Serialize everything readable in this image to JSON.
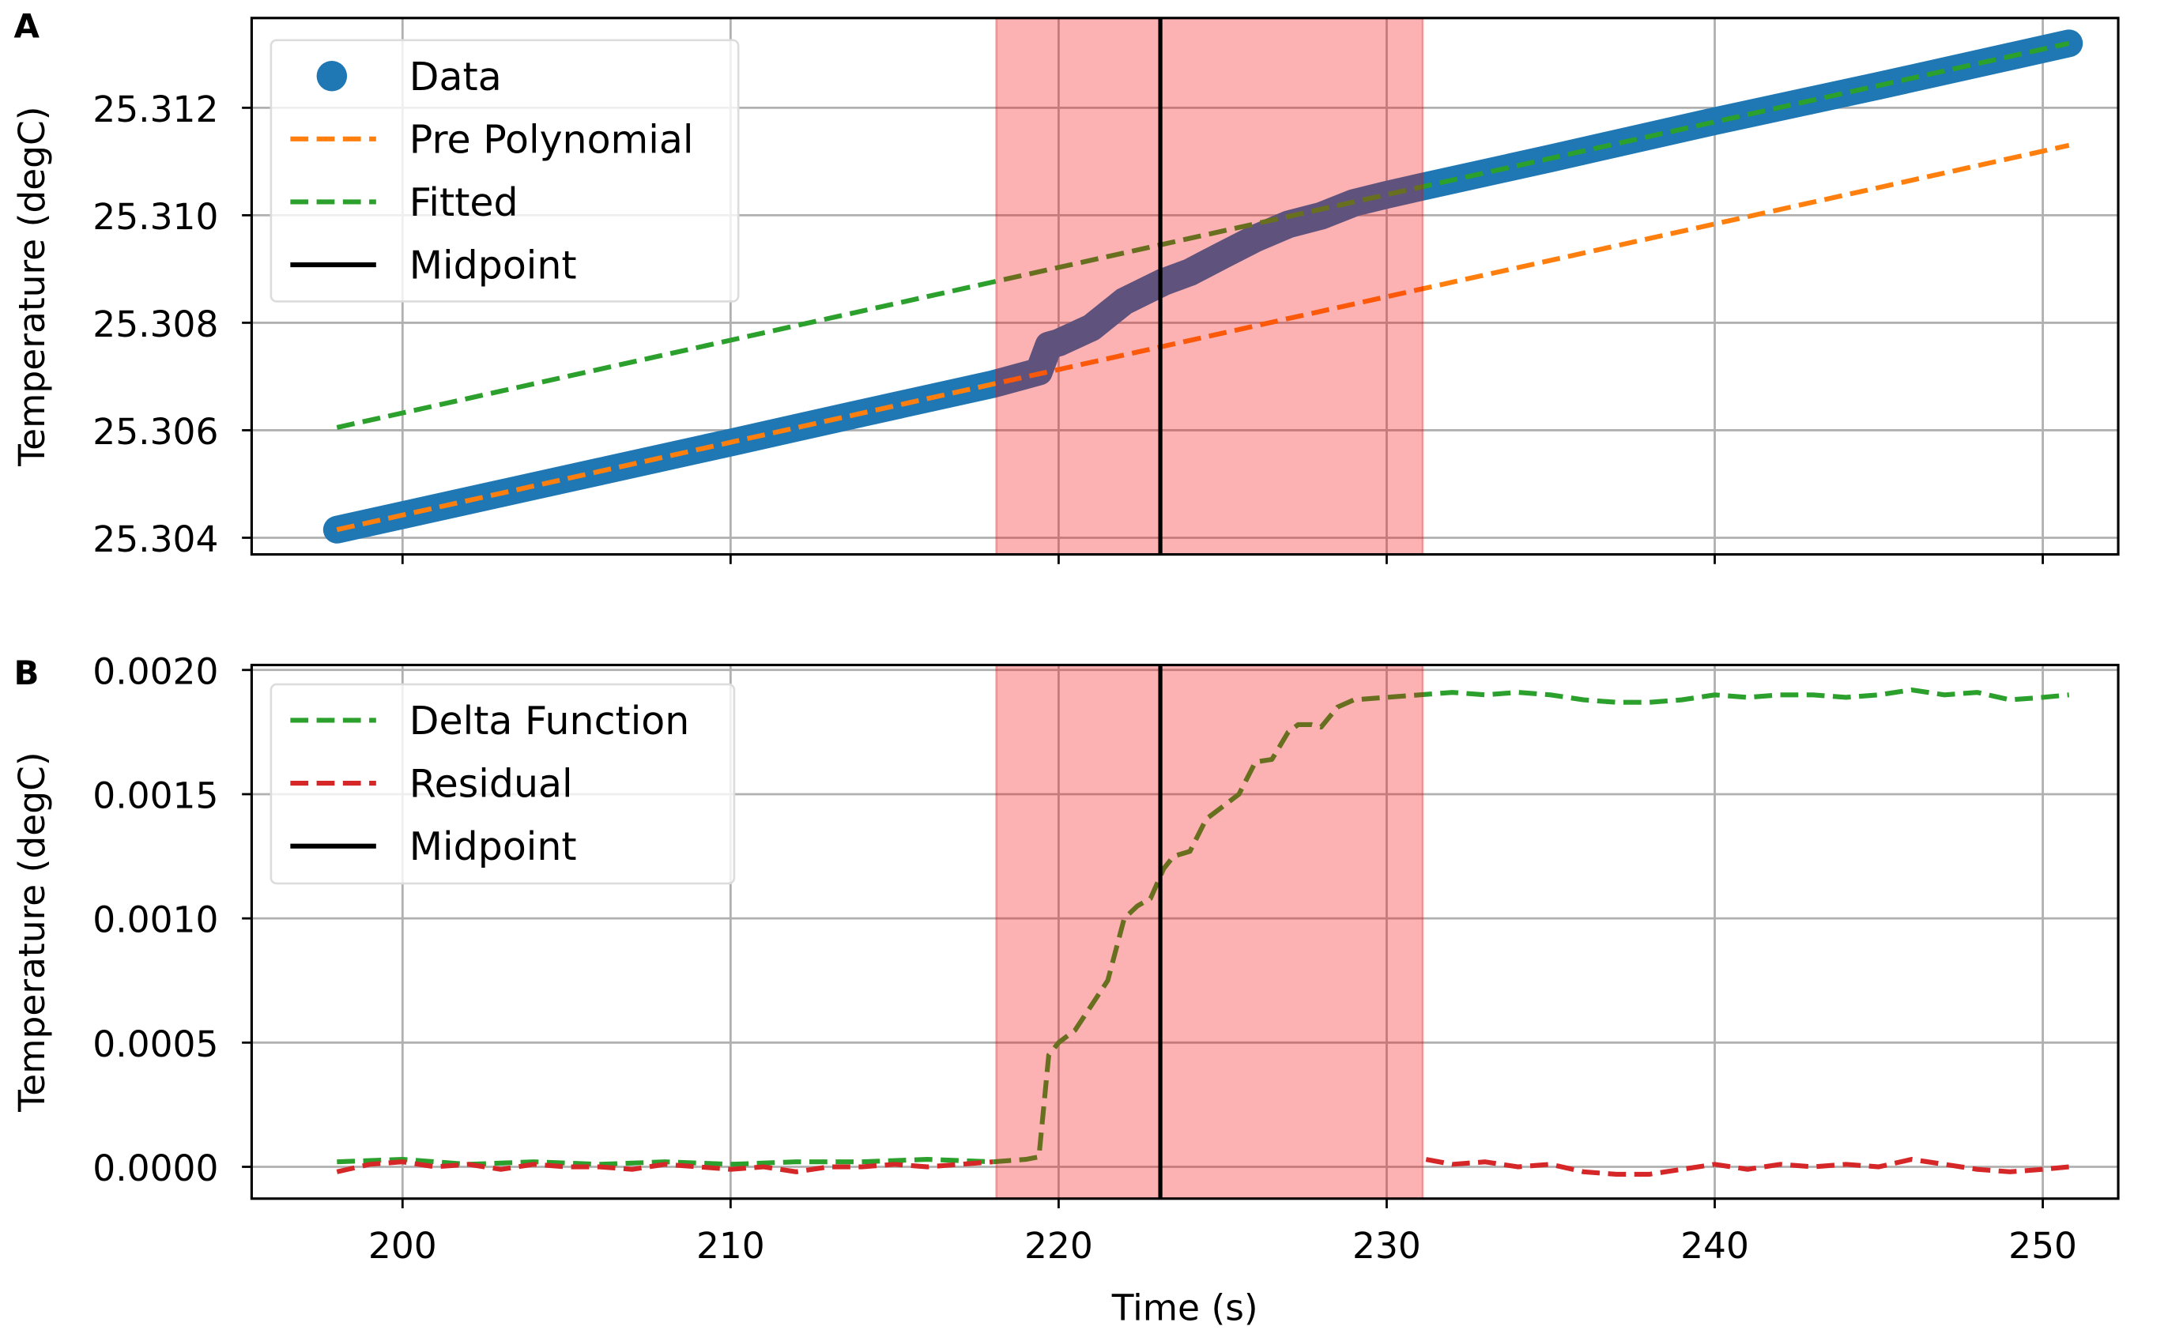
{
  "chart_data": [
    {
      "panel_label": "A",
      "type": "line",
      "xlabel": "",
      "ylabel": "Temperature (degC)",
      "xlim": [
        195.4,
        252.3
      ],
      "ylim": [
        25.30369,
        25.31367
      ],
      "xticks": [
        200,
        210,
        220,
        230,
        240,
        250
      ],
      "yticks": [
        "25.304",
        "25.306",
        "25.308",
        "25.310",
        "25.312"
      ],
      "ytick_values": [
        25.304,
        25.306,
        25.308,
        25.31,
        25.312
      ],
      "grid": true,
      "legend_placement": "top-left",
      "shaded_region": [
        218.1,
        231.1
      ],
      "midpoint": 223.1,
      "series": [
        {
          "name": "Data",
          "style": "scatter",
          "color": "#1f77b4",
          "x": [
            198,
            202,
            206,
            210,
            214,
            218,
            219.4,
            219.7,
            220,
            221,
            222,
            223.2,
            224,
            225,
            226,
            227,
            228,
            229,
            230,
            231,
            235,
            240,
            245,
            250.8
          ],
          "y": [
            25.30415,
            25.30469,
            25.30523,
            25.30577,
            25.30632,
            25.30686,
            25.30709,
            25.30758,
            25.30763,
            25.30791,
            25.3084,
            25.30876,
            25.30894,
            25.30926,
            25.30957,
            25.30983,
            25.30999,
            25.31023,
            25.31038,
            25.31052,
            25.31106,
            25.31175,
            25.31241,
            25.3132
          ]
        },
        {
          "name": "Pre Polynomial",
          "style": "dashed",
          "color": "#ff7f0e",
          "x": [
            198,
            250.8
          ],
          "y": [
            25.30415,
            25.3113
          ]
        },
        {
          "name": "Fitted",
          "style": "dashed",
          "color": "#2ca02c",
          "x": [
            198,
            250.8
          ],
          "y": [
            25.30605,
            25.3132
          ]
        },
        {
          "name": "Midpoint",
          "style": "solid",
          "color": "#000000"
        }
      ]
    },
    {
      "panel_label": "B",
      "type": "line",
      "xlabel": "Time (s)",
      "ylabel": "Temperature (degC)",
      "xlim": [
        195.4,
        252.3
      ],
      "ylim": [
        -0.000128,
        0.00202
      ],
      "xticks": [
        200,
        210,
        220,
        230,
        240,
        250
      ],
      "yticks": [
        "0.0000",
        "0.0005",
        "0.0010",
        "0.0015",
        "0.0020"
      ],
      "ytick_values": [
        0,
        0.0005,
        0.001,
        0.0015,
        0.002
      ],
      "grid": true,
      "legend_placement": "top-left",
      "shaded_region": [
        218.1,
        231.1
      ],
      "midpoint": 223.1,
      "series": [
        {
          "name": "Delta Function",
          "style": "dashed",
          "color": "#2ca02c",
          "x": [
            198,
            200,
            202,
            204,
            206,
            208,
            210,
            212,
            214,
            216,
            218,
            219,
            219.4,
            219.7,
            220,
            220.5,
            221,
            221.5,
            222,
            222.4,
            222.8,
            223.2,
            223.5,
            224,
            224.5,
            225,
            225.5,
            226,
            226.5,
            227,
            227.3,
            227.7,
            228,
            228.5,
            229,
            230,
            231,
            232,
            233,
            234,
            235,
            236,
            237,
            238,
            239,
            240,
            241,
            242,
            243,
            244,
            245,
            246,
            247,
            248,
            249,
            250,
            250.8
          ],
          "y": [
            2e-05,
            3e-05,
            1e-05,
            2e-05,
            1e-05,
            2e-05,
            1e-05,
            2e-05,
            2e-05,
            3e-05,
            2e-05,
            3e-05,
            4e-05,
            0.00045,
            0.0005,
            0.00055,
            0.00065,
            0.00075,
            0.001,
            0.00105,
            0.00108,
            0.0012,
            0.00125,
            0.00127,
            0.0014,
            0.00145,
            0.0015,
            0.00163,
            0.00164,
            0.00175,
            0.00178,
            0.00178,
            0.00177,
            0.00185,
            0.00188,
            0.00189,
            0.0019,
            0.00191,
            0.0019,
            0.00191,
            0.0019,
            0.00188,
            0.00187,
            0.00187,
            0.00188,
            0.0019,
            0.00189,
            0.0019,
            0.0019,
            0.00189,
            0.0019,
            0.00192,
            0.0019,
            0.00191,
            0.00188,
            0.00189,
            0.0019
          ]
        },
        {
          "name": "Residual",
          "style": "dashed",
          "color": "#d62728",
          "x": [
            198,
            199,
            200,
            201,
            202,
            203,
            204,
            205,
            206,
            207,
            208,
            209,
            210,
            211,
            212,
            213,
            214,
            215,
            216,
            217,
            218,
            null,
            231.2,
            232,
            233,
            234,
            235,
            236,
            237,
            238,
            239,
            240,
            241,
            242,
            243,
            244,
            245,
            246,
            247,
            248,
            249,
            250,
            250.8
          ],
          "y": [
            -2e-05,
            1e-05,
            2e-05,
            0.0,
            1e-05,
            -1e-05,
            1e-05,
            0.0,
            0.0,
            -1e-05,
            1e-05,
            0.0,
            -1e-05,
            0.0,
            -2e-05,
            0.0,
            0.0,
            1e-05,
            0.0,
            1e-05,
            2e-05,
            null,
            3e-05,
            1e-05,
            2e-05,
            0.0,
            1e-05,
            -2e-05,
            -3e-05,
            -3e-05,
            -1e-05,
            1e-05,
            -1e-05,
            1e-05,
            0.0,
            1e-05,
            0.0,
            3e-05,
            1e-05,
            -1e-05,
            -2e-05,
            -1e-05,
            0.0
          ]
        },
        {
          "name": "Midpoint",
          "style": "solid",
          "color": "#000000"
        }
      ]
    }
  ]
}
